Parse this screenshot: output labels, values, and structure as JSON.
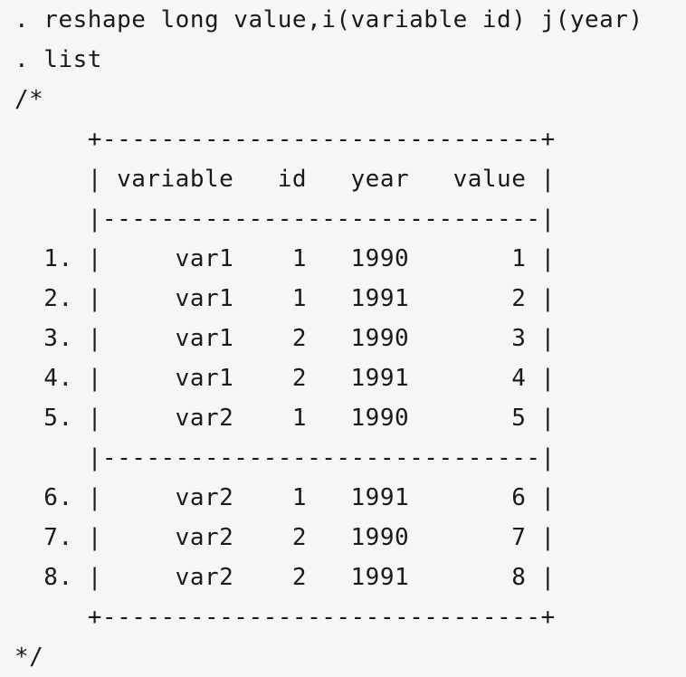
{
  "code": {
    "lines": [
      ". reshape long value,i(variable id) j(year)",
      ". list",
      "/*",
      "     +------------------------------+",
      "     | variable   id   year   value |",
      "     |------------------------------|",
      "  1. |     var1    1   1990       1 |",
      "  2. |     var1    1   1991       2 |",
      "  3. |     var1    2   1990       3 |",
      "  4. |     var1    2   1991       4 |",
      "  5. |     var2    1   1990       5 |",
      "     |------------------------------|",
      "  6. |     var2    1   1991       6 |",
      "  7. |     var2    2   1990       7 |",
      "  8. |     var2    2   1991       8 |",
      "     +------------------------------+",
      "*/"
    ]
  },
  "colors": {
    "background": "#f6f6f6",
    "text": "#1a1a1a"
  }
}
